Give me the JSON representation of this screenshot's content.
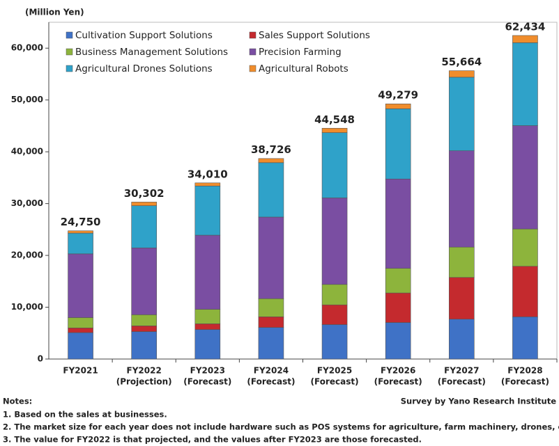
{
  "chart_data": {
    "type": "stacked_bar",
    "unit_label": "(Million Yen)",
    "categories": [
      [
        "FY2021"
      ],
      [
        "FY2022",
        "(Projection)"
      ],
      [
        "FY2023",
        "(Forecast)"
      ],
      [
        "FY2024",
        "(Forecast)"
      ],
      [
        "FY2025",
        "(Forecast)"
      ],
      [
        "FY2026",
        "(Forecast)"
      ],
      [
        "FY2027",
        "(Forecast)"
      ],
      [
        "FY2028",
        "(Forecast)"
      ]
    ],
    "series": [
      {
        "name": "Cultivation Support Solutions",
        "color": "#3f72c6",
        "values": [
          5100,
          5300,
          5700,
          6100,
          6650,
          7050,
          7700,
          8150
        ]
      },
      {
        "name": "Sales Support Solutions",
        "color": "#c42a2e",
        "values": [
          900,
          1100,
          1100,
          2050,
          3800,
          5700,
          8050,
          9750
        ]
      },
      {
        "name": "Business Management Solutions",
        "color": "#8db43c",
        "values": [
          2000,
          2150,
          2800,
          3500,
          3950,
          4750,
          5850,
          7200
        ]
      },
      {
        "name": "Precision Farming",
        "color": "#7a4ea2",
        "values": [
          12300,
          12900,
          14300,
          15750,
          16700,
          17250,
          18600,
          19950
        ]
      },
      {
        "name": "Agricultural Drones Solutions",
        "color": "#2fa2c9",
        "values": [
          4000,
          8150,
          9500,
          10500,
          12600,
          13550,
          14200,
          16000
        ]
      },
      {
        "name": "Agricultural Robots",
        "color": "#f08d2c",
        "values": [
          450,
          700,
          600,
          800,
          850,
          950,
          1250,
          1400
        ]
      }
    ],
    "totals": {
      "values": [
        24750,
        30302,
        34010,
        38726,
        44548,
        49279,
        55664,
        62434
      ],
      "value_labels": [
        "24,750",
        "30,302",
        "34,010",
        "38,726",
        "44,548",
        "49,279",
        "55,664",
        "62,434"
      ]
    },
    "ylim": [
      0,
      65000
    ],
    "yticks": [
      0,
      {
        "value": 10000,
        "label": "10,000"
      },
      {
        "value": 20000,
        "label": "20,000"
      },
      {
        "value": 30000,
        "label": "30,000"
      },
      {
        "value": 40000,
        "label": "40,000"
      },
      {
        "value": 50000,
        "label": "50,000"
      },
      {
        "value": 60000,
        "label": "60,000"
      }
    ],
    "legend": "top-left",
    "notes_title": "Notes:",
    "source": "Survey by Yano Research Institute",
    "notes": [
      "1. Based on the sales at businesses.",
      "2. The market size for each year does not include hardware such as POS systems for agriculture, farm machinery, drones, e",
      "3. The value for FY2022 is that projected, and the values after FY2023 are those forecasted."
    ]
  }
}
